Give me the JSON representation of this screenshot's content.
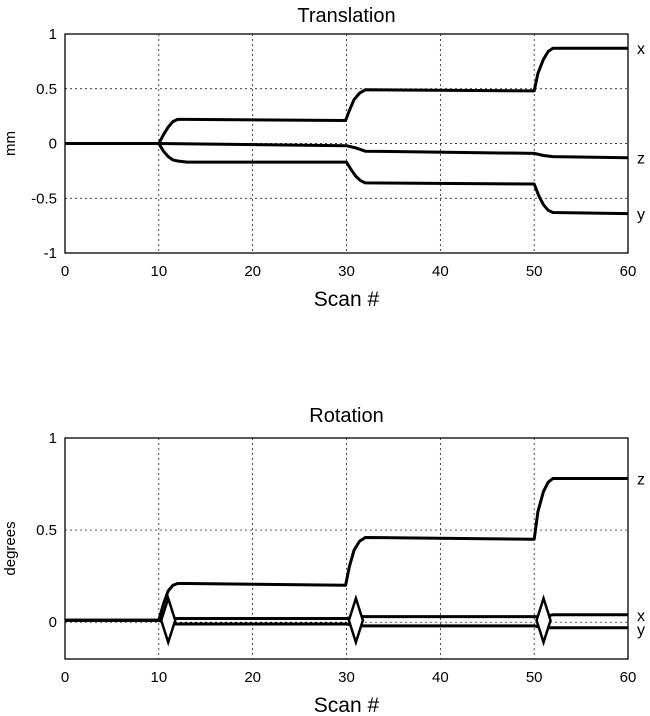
{
  "chart_data": [
    {
      "type": "line",
      "title": "Translation",
      "xlabel": "Scan #",
      "ylabel": "mm",
      "xlim": [
        0,
        60
      ],
      "ylim": [
        -1,
        1
      ],
      "xticks": [
        "0",
        "10",
        "20",
        "30",
        "40",
        "50",
        "60"
      ],
      "yticks": [
        "-1",
        "-0.5",
        "0",
        "0.5",
        "1"
      ],
      "grid": true,
      "series": [
        {
          "name": "x",
          "x": [
            0,
            10,
            10.5,
            11,
            11.5,
            12,
            13,
            29.9,
            30.3,
            30.8,
            31.4,
            32,
            50,
            50.4,
            51,
            51.5,
            52,
            60
          ],
          "y": [
            0,
            0,
            0.08,
            0.15,
            0.2,
            0.22,
            0.22,
            0.21,
            0.3,
            0.4,
            0.46,
            0.49,
            0.48,
            0.64,
            0.77,
            0.84,
            0.87,
            0.87
          ]
        },
        {
          "name": "z",
          "x": [
            0,
            10,
            30,
            31,
            32,
            50,
            51,
            52,
            60
          ],
          "y": [
            0,
            0,
            -0.02,
            -0.04,
            -0.07,
            -0.09,
            -0.11,
            -0.12,
            -0.13
          ]
        },
        {
          "name": "y",
          "x": [
            0,
            10,
            10.5,
            11,
            11.5,
            12,
            13,
            30,
            30.5,
            31,
            31.5,
            32,
            50,
            50.5,
            51,
            51.5,
            52,
            60
          ],
          "y": [
            0,
            0,
            -0.07,
            -0.12,
            -0.15,
            -0.16,
            -0.17,
            -0.17,
            -0.24,
            -0.3,
            -0.34,
            -0.36,
            -0.37,
            -0.48,
            -0.56,
            -0.61,
            -0.63,
            -0.64
          ]
        }
      ]
    },
    {
      "type": "line",
      "title": "Rotation",
      "xlabel": "Scan #",
      "ylabel": "degrees",
      "xlim": [
        0,
        60
      ],
      "ylim": [
        -0.2,
        1
      ],
      "xticks": [
        "0",
        "10",
        "20",
        "30",
        "40",
        "50",
        "60"
      ],
      "yticks": [
        "0",
        "0.5",
        "1"
      ],
      "grid": true,
      "series": [
        {
          "name": "z",
          "x": [
            0,
            10,
            10.5,
            11,
            11.5,
            12,
            13,
            29.9,
            30.3,
            30.8,
            31.4,
            32,
            50,
            50.4,
            51,
            51.5,
            52,
            60
          ],
          "y": [
            0.01,
            0.01,
            0.1,
            0.17,
            0.2,
            0.21,
            0.21,
            0.2,
            0.3,
            0.39,
            0.44,
            0.46,
            0.45,
            0.6,
            0.71,
            0.76,
            0.78,
            0.78
          ]
        },
        {
          "name": "x",
          "x": [
            0,
            10,
            11,
            12,
            30,
            31,
            32,
            50,
            51,
            52,
            60
          ],
          "y": [
            0.01,
            0.01,
            0.02,
            0.02,
            0.02,
            0.03,
            0.03,
            0.03,
            0.03,
            0.04,
            0.04
          ]
        },
        {
          "name": "y",
          "x": [
            0,
            10,
            11,
            12,
            30,
            31,
            32,
            50,
            51,
            52,
            60
          ],
          "y": [
            0.01,
            0.01,
            -0.01,
            -0.01,
            -0.01,
            -0.02,
            -0.02,
            -0.02,
            -0.03,
            -0.03,
            -0.03
          ]
        }
      ],
      "markers": [
        {
          "x": 11,
          "y": 0.01
        },
        {
          "x": 31,
          "y": 0.01
        },
        {
          "x": 51,
          "y": 0.01
        }
      ]
    }
  ]
}
